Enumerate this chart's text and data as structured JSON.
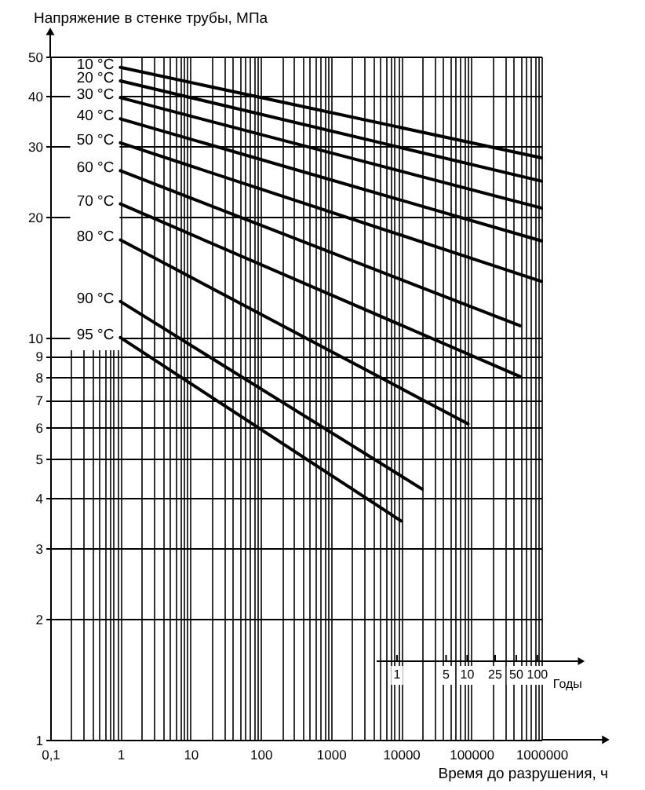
{
  "chart_data": {
    "type": "line",
    "xlabel": "Время до разрушения, ч",
    "ylabel": "Напряжение в стенке трубы, МПа",
    "log": "xy",
    "xlim": [
      0.1,
      1000000
    ],
    "ylim": [
      1,
      50
    ],
    "xticks": [
      {
        "value": 0.1,
        "label": "0,1"
      },
      {
        "value": 0.2,
        "label": null
      },
      {
        "value": 0.3,
        "label": null
      },
      {
        "value": 0.4,
        "label": null
      },
      {
        "value": 0.5,
        "label": null
      },
      {
        "value": 0.6,
        "label": null
      },
      {
        "value": 0.7,
        "label": null
      },
      {
        "value": 0.8,
        "label": null
      },
      {
        "value": 0.9,
        "label": null
      },
      1,
      {
        "value": 2,
        "label": null
      },
      {
        "value": 3,
        "label": null
      },
      {
        "value": 4,
        "label": null
      },
      {
        "value": 5,
        "label": null
      },
      {
        "value": 6,
        "label": null
      },
      {
        "value": 7,
        "label": null
      },
      {
        "value": 8,
        "label": null
      },
      {
        "value": 9,
        "label": null
      },
      10,
      {
        "value": 20,
        "label": null
      },
      {
        "value": 30,
        "label": null
      },
      {
        "value": 40,
        "label": null
      },
      {
        "value": 50,
        "label": null
      },
      {
        "value": 60,
        "label": null
      },
      {
        "value": 70,
        "label": null
      },
      {
        "value": 80,
        "label": null
      },
      {
        "value": 90,
        "label": null
      },
      100,
      {
        "value": 200,
        "label": null
      },
      {
        "value": 300,
        "label": null
      },
      {
        "value": 400,
        "label": null
      },
      {
        "value": 500,
        "label": null
      },
      {
        "value": 600,
        "label": null
      },
      {
        "value": 700,
        "label": null
      },
      {
        "value": 800,
        "label": null
      },
      {
        "value": 900,
        "label": null
      },
      1000,
      {
        "value": 2000,
        "label": null
      },
      {
        "value": 3000,
        "label": null
      },
      {
        "value": 4000,
        "label": null
      },
      {
        "value": 5000,
        "label": null
      },
      {
        "value": 6000,
        "label": null
      },
      {
        "value": 7000,
        "label": null
      },
      {
        "value": 8000,
        "label": null
      },
      {
        "value": 9000,
        "label": null
      },
      10000,
      {
        "value": 20000,
        "label": null
      },
      {
        "value": 30000,
        "label": null
      },
      {
        "value": 40000,
        "label": null
      },
      {
        "value": 50000,
        "label": null
      },
      {
        "value": 60000,
        "label": null
      },
      {
        "value": 70000,
        "label": null
      },
      {
        "value": 80000,
        "label": null
      },
      {
        "value": 90000,
        "label": null
      },
      100000,
      {
        "value": 200000,
        "label": null
      },
      {
        "value": 300000,
        "label": null
      },
      {
        "value": 400000,
        "label": null
      },
      {
        "value": 500000,
        "label": null
      },
      {
        "value": 600000,
        "label": null
      },
      {
        "value": 700000,
        "label": null
      },
      {
        "value": 800000,
        "label": null
      },
      {
        "value": 900000,
        "label": null
      },
      1000000
    ],
    "yticks": [
      1,
      2,
      3,
      4,
      5,
      6,
      7,
      8,
      9,
      10,
      20,
      30,
      40,
      50
    ],
    "annotations": [
      "1",
      "5",
      "10",
      "25",
      "50",
      "100",
      "Годы"
    ],
    "grid": true,
    "line_style": "solid",
    "series": [
      {
        "name": "10 °C",
        "color": "#000000",
        "x": [
          1,
          1000000
        ],
        "values": [
          47,
          28
        ]
      },
      {
        "name": "20 °C",
        "color": "#000000",
        "x": [
          1,
          1000000
        ],
        "values": [
          43.5,
          24.5
        ]
      },
      {
        "name": "30 °C",
        "color": "#000000",
        "x": [
          1,
          1000000
        ],
        "values": [
          39.5,
          21
        ]
      },
      {
        "name": "40 °C",
        "color": "#000000",
        "x": [
          1,
          1000000
        ],
        "values": [
          35,
          17.4
        ]
      },
      {
        "name": "50 °C",
        "color": "#000000",
        "x": [
          1,
          1000000
        ],
        "values": [
          30.5,
          13.8
        ]
      },
      {
        "name": "60 °C",
        "color": "#000000",
        "x": [
          1,
          500000
        ],
        "values": [
          26,
          10.7
        ]
      },
      {
        "name": "70 °C",
        "color": "#000000",
        "x": [
          1,
          500000
        ],
        "values": [
          21.5,
          8
        ]
      },
      {
        "name": "80 °C",
        "color": "#000000",
        "x": [
          1,
          90000
        ],
        "values": [
          17.5,
          6.1
        ]
      },
      {
        "name": "90 °C",
        "color": "#000000",
        "x": [
          1,
          20000
        ],
        "values": [
          12.3,
          4.2
        ]
      },
      {
        "name": "95 °C",
        "color": "#000000",
        "x": [
          1,
          10000
        ],
        "values": [
          10,
          3.5
        ]
      }
    ]
  }
}
